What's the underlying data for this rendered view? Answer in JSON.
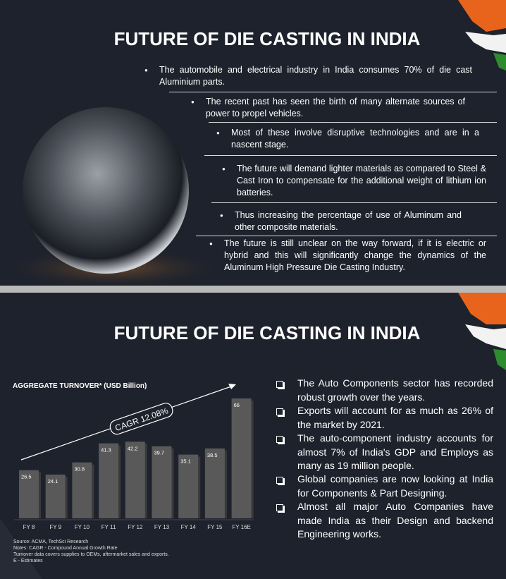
{
  "slides": [
    {
      "title": "FUTURE OF DIE CASTING IN INDIA",
      "bullets": [
        "The automobile and electrical industry in India consumes 70% of die cast Aluminium parts.",
        "The recent past has seen the birth of many alternate sources of power to propel vehicles.",
        "Most of these involve disruptive technologies and are in a nascent stage.",
        "The future will demand lighter materials as compared to Steel & Cast Iron to compensate for the additional weight of lithium ion batteries.",
        "Thus increasing the percentage of use of Aluminum and other composite materials.",
        "The future is still unclear on the way forward, if it is electric or hybrid and this will significantly change the dynamics of the Aluminum High Pressure Die Casting Industry."
      ]
    },
    {
      "title": "FUTURE OF DIE CASTING IN INDIA",
      "bullets": [
        "The Auto Components sector has recorded robust growth over the years.",
        "Exports will account for as much as 26% of the market by 2021.",
        "The auto-component industry accounts for almost 7% of India's GDP and Employs as many as 19 million people.",
        "Global companies are now looking at India for Components & Part Designing.",
        "Almost all major Auto Companies have made India as their Design and backend Engineering works."
      ]
    }
  ],
  "chart_data": {
    "type": "bar",
    "title": "AGGREGATE TURNOVER* (USD Billion)",
    "categories": [
      "FY 8",
      "FY 9",
      "FY 10",
      "FY 11",
      "FY 12",
      "FY 13",
      "FY 14",
      "FY 15",
      "FY 16E"
    ],
    "values": [
      26.5,
      24.1,
      30.8,
      41.3,
      42.2,
      39.7,
      35.1,
      38.5,
      66
    ],
    "color": "#595959",
    "annotation": "CAGR 12.08%",
    "notes": [
      "Source: ACMA, TechSci Research",
      "Notes: CAGR - Compound Annual Growth Rate",
      "Turnover data covers supplies to OEMs, aftermarket sales and exports.",
      "E - Estimates"
    ]
  }
}
